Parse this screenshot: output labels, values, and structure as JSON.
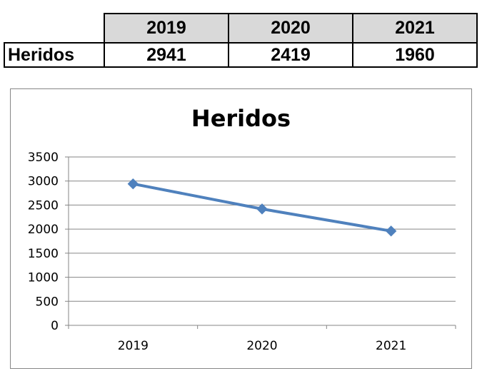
{
  "table": {
    "headers": [
      "2019",
      "2020",
      "2021"
    ],
    "row_label": "Heridos",
    "values": [
      "2941",
      "2419",
      "1960"
    ]
  },
  "chart_data": {
    "type": "line",
    "title": "Heridos",
    "categories": [
      "2019",
      "2020",
      "2021"
    ],
    "series": [
      {
        "values": [
          2941,
          2419,
          1960
        ],
        "color": "#4f81bd",
        "marker": "diamond"
      }
    ],
    "ylim": [
      0,
      3500
    ],
    "yticks": [
      0,
      500,
      1000,
      1500,
      2000,
      2500,
      3000,
      3500
    ],
    "grid": true,
    "legend": "none"
  }
}
